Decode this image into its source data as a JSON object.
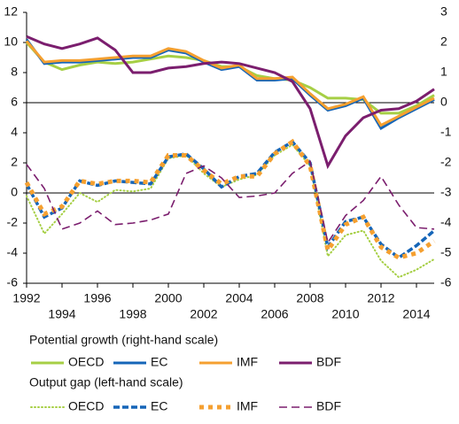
{
  "chart_data": {
    "type": "line",
    "x": [
      1992,
      1993,
      1994,
      1995,
      1996,
      1997,
      1998,
      1999,
      2000,
      2001,
      2002,
      2003,
      2004,
      2005,
      2006,
      2007,
      2008,
      2009,
      2010,
      2011,
      2012,
      2013,
      2014,
      2015
    ],
    "xlim": [
      1992,
      2015
    ],
    "xticks": [
      1992,
      1994,
      1996,
      1998,
      2000,
      2002,
      2004,
      2006,
      2008,
      2010,
      2012,
      2014
    ],
    "ylim": [
      -6,
      12
    ],
    "yticks": [
      -6,
      -4,
      -2,
      0,
      2,
      4,
      6,
      8,
      10,
      12
    ],
    "y2lim": [
      -6,
      3
    ],
    "y2ticks": [
      -6,
      -5,
      -4,
      -3,
      -2,
      -1,
      0,
      1,
      2,
      3
    ],
    "legend_titles": [
      "Potential growth (right-hand scale)",
      "Output gap (left-hand scale)"
    ],
    "series": [
      {
        "name": "OECD",
        "color": "#a6cf45",
        "style": "solid",
        "axis": "y2",
        "values": [
          2.0,
          1.35,
          1.1,
          1.25,
          1.35,
          1.3,
          1.35,
          1.45,
          1.55,
          1.5,
          1.4,
          1.2,
          1.2,
          0.9,
          0.8,
          0.75,
          0.5,
          0.15,
          0.15,
          0.1,
          -0.35,
          -0.35,
          -0.1,
          0.25
        ]
      },
      {
        "name": "EC",
        "color": "#1565b8",
        "style": "solid",
        "axis": "y2",
        "values": [
          2.1,
          1.3,
          1.35,
          1.35,
          1.4,
          1.45,
          1.5,
          1.5,
          1.75,
          1.65,
          1.35,
          1.1,
          1.2,
          0.75,
          0.75,
          0.8,
          0.25,
          -0.25,
          -0.1,
          0.15,
          -0.85,
          -0.5,
          -0.2,
          0.1
        ]
      },
      {
        "name": "IMF",
        "color": "#f5a030",
        "style": "solid",
        "axis": "y2",
        "values": [
          2.05,
          1.35,
          1.4,
          1.4,
          1.45,
          1.5,
          1.55,
          1.55,
          1.8,
          1.7,
          1.4,
          1.15,
          1.25,
          0.8,
          0.8,
          0.85,
          0.3,
          -0.2,
          -0.05,
          0.2,
          -0.75,
          -0.45,
          -0.15,
          0.15
        ]
      },
      {
        "name": "BDF",
        "color": "#7b1e6e",
        "style": "solid",
        "axis": "y2",
        "values": [
          2.2,
          1.95,
          1.8,
          1.95,
          2.15,
          1.75,
          1.0,
          1.0,
          1.15,
          1.2,
          1.3,
          1.35,
          1.3,
          1.15,
          1.0,
          0.7,
          -0.2,
          -2.1,
          -1.1,
          -0.5,
          -0.25,
          -0.2,
          0.05,
          0.45
        ]
      },
      {
        "name": "OECD",
        "color": "#a6cf45",
        "style": "dotted",
        "axis": "y",
        "values": [
          -0.2,
          -2.7,
          -1.4,
          0.0,
          -0.6,
          0.2,
          0.1,
          0.3,
          2.3,
          2.5,
          1.3,
          0.4,
          0.9,
          1.2,
          2.5,
          3.2,
          1.8,
          -4.2,
          -2.8,
          -2.5,
          -4.5,
          -5.6,
          -5.1,
          -4.4
        ]
      },
      {
        "name": "EC",
        "color": "#1565b8",
        "style": "dashed",
        "axis": "y",
        "values": [
          0.6,
          -1.6,
          -1.0,
          0.8,
          0.5,
          0.8,
          0.7,
          0.6,
          2.4,
          2.6,
          1.6,
          0.4,
          1.1,
          1.3,
          2.7,
          3.4,
          2.0,
          -3.6,
          -1.9,
          -1.6,
          -3.4,
          -4.3,
          -3.5,
          -2.5
        ]
      },
      {
        "name": "IMF",
        "color": "#f5a030",
        "style": "square-dotted",
        "axis": "y",
        "values": [
          0.7,
          -1.4,
          -0.9,
          0.8,
          0.6,
          0.8,
          0.8,
          0.7,
          2.5,
          2.5,
          1.5,
          0.6,
          1.1,
          1.1,
          2.6,
          3.4,
          1.8,
          -3.8,
          -2.1,
          -1.6,
          -3.6,
          -4.3,
          -4.0,
          -3.2
        ]
      },
      {
        "name": "BDF",
        "color": "#7b1e6e",
        "style": "long-dashed",
        "axis": "y",
        "values": [
          1.9,
          0.3,
          -2.4,
          -2.0,
          -1.2,
          -2.1,
          -2.0,
          -1.8,
          -1.4,
          1.3,
          1.8,
          1.0,
          -0.3,
          -0.2,
          0.0,
          1.3,
          2.1,
          -3.3,
          -1.5,
          -0.5,
          1.1,
          -0.8,
          -2.3,
          -2.4
        ]
      }
    ]
  }
}
